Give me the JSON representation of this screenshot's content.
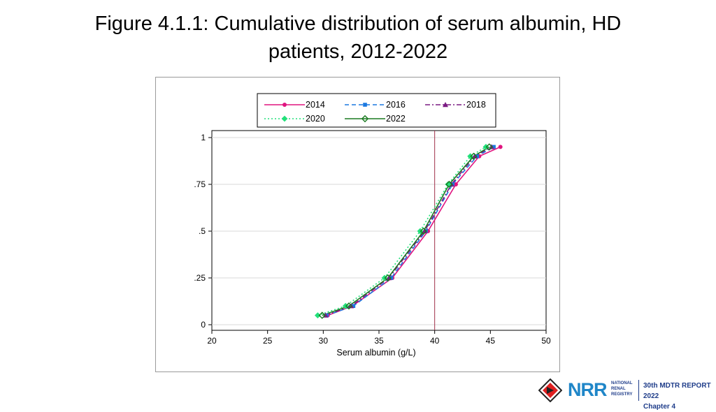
{
  "title": {
    "line1": "Figure 4.1.1: Cumulative distribution of serum albumin, HD",
    "line2": "patients, 2012-2022"
  },
  "chart_data": {
    "type": "line",
    "title": "Figure 4.1.1: Cumulative distribution of serum albumin, HD patients, 2012-2022",
    "xlabel": "Serum albumin (g/L)",
    "ylabel": "",
    "xlim": [
      20,
      50
    ],
    "ylim": [
      0,
      1
    ],
    "xticks": [
      20,
      25,
      30,
      35,
      40,
      45,
      50
    ],
    "xtick_labels": [
      "20",
      "25",
      "30",
      "35",
      "40",
      "45",
      "50"
    ],
    "yticks": [
      0,
      0.25,
      0.5,
      0.75,
      1
    ],
    "ytick_labels": [
      "0",
      ".25",
      ".5",
      ".75",
      "1"
    ],
    "grid": true,
    "reference_line": {
      "x": 40,
      "color": "#a0304a"
    },
    "legend_position": "top",
    "cumulative_levels": [
      0.05,
      0.1,
      0.25,
      0.5,
      0.75,
      0.9,
      0.95
    ],
    "series": [
      {
        "name": "2014",
        "color": "#e0147f",
        "dash": "solid",
        "marker": "circle",
        "x": [
          30.4,
          32.6,
          36.2,
          39.4,
          41.9,
          44.0,
          45.9
        ],
        "y": [
          0.05,
          0.1,
          0.25,
          0.5,
          0.75,
          0.9,
          0.95
        ]
      },
      {
        "name": "2016",
        "color": "#1a78e0",
        "dash": "dash",
        "marker": "square",
        "x": [
          30.3,
          32.7,
          36.1,
          39.2,
          41.6,
          43.8,
          45.3
        ],
        "y": [
          0.05,
          0.1,
          0.25,
          0.5,
          0.75,
          0.9,
          0.95
        ]
      },
      {
        "name": "2018",
        "color": "#7a1a82",
        "dash": "dashdot",
        "marker": "triangle",
        "x": [
          30.2,
          32.5,
          35.9,
          39.1,
          41.5,
          43.6,
          45.1
        ],
        "y": [
          0.05,
          0.1,
          0.25,
          0.5,
          0.75,
          0.9,
          0.95
        ]
      },
      {
        "name": "2020",
        "color": "#22e07a",
        "dash": "dot",
        "marker": "diamond",
        "x": [
          29.5,
          32.0,
          35.5,
          38.7,
          41.2,
          43.2,
          44.6
        ],
        "y": [
          0.05,
          0.1,
          0.25,
          0.5,
          0.75,
          0.9,
          0.95
        ]
      },
      {
        "name": "2022",
        "color": "#1a7a20",
        "dash": "solid",
        "marker": "diamond-open",
        "x": [
          29.9,
          32.3,
          35.8,
          39.0,
          41.3,
          43.5,
          44.9
        ],
        "y": [
          0.05,
          0.1,
          0.25,
          0.5,
          0.75,
          0.9,
          0.95
        ]
      }
    ]
  },
  "footer": {
    "logo_text": "NRR",
    "org_line1": "NATIONAL",
    "org_line2": "RENAL",
    "org_line3": "REGISTRY",
    "report_line1": "30th MDTR REPORT 2022",
    "report_line2": "Chapter 4"
  }
}
